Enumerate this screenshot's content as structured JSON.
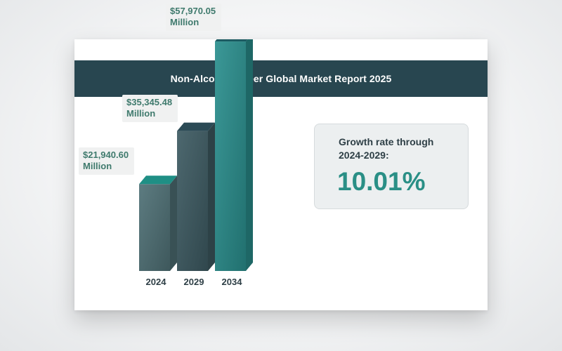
{
  "report": {
    "title": "Non-Alcoholic Beer Global Market Report 2025"
  },
  "growth": {
    "label": "Growth rate through 2024-2029:",
    "value": "10.01%"
  },
  "colors": {
    "header_bg": "#284650",
    "label_green": "#3f7a6d",
    "growth_value": "#2a8f86",
    "bar_front": [
      "#4f7176",
      "#3e5b63",
      "#2a8f8e"
    ],
    "bar_top": [
      "#1f8f85",
      "#2b4a55",
      "#1d5b62"
    ]
  },
  "chart_data": {
    "type": "bar",
    "categories": [
      "2024",
      "2029",
      "2034"
    ],
    "values": [
      21940.6,
      35345.48,
      57970.05
    ],
    "data_labels": [
      "$21,940.60 Million",
      "$35,345.48 Million",
      "$57,970.05 Million"
    ],
    "title": "",
    "xlabel": "",
    "ylabel": "",
    "grid": false,
    "legend": "none"
  }
}
